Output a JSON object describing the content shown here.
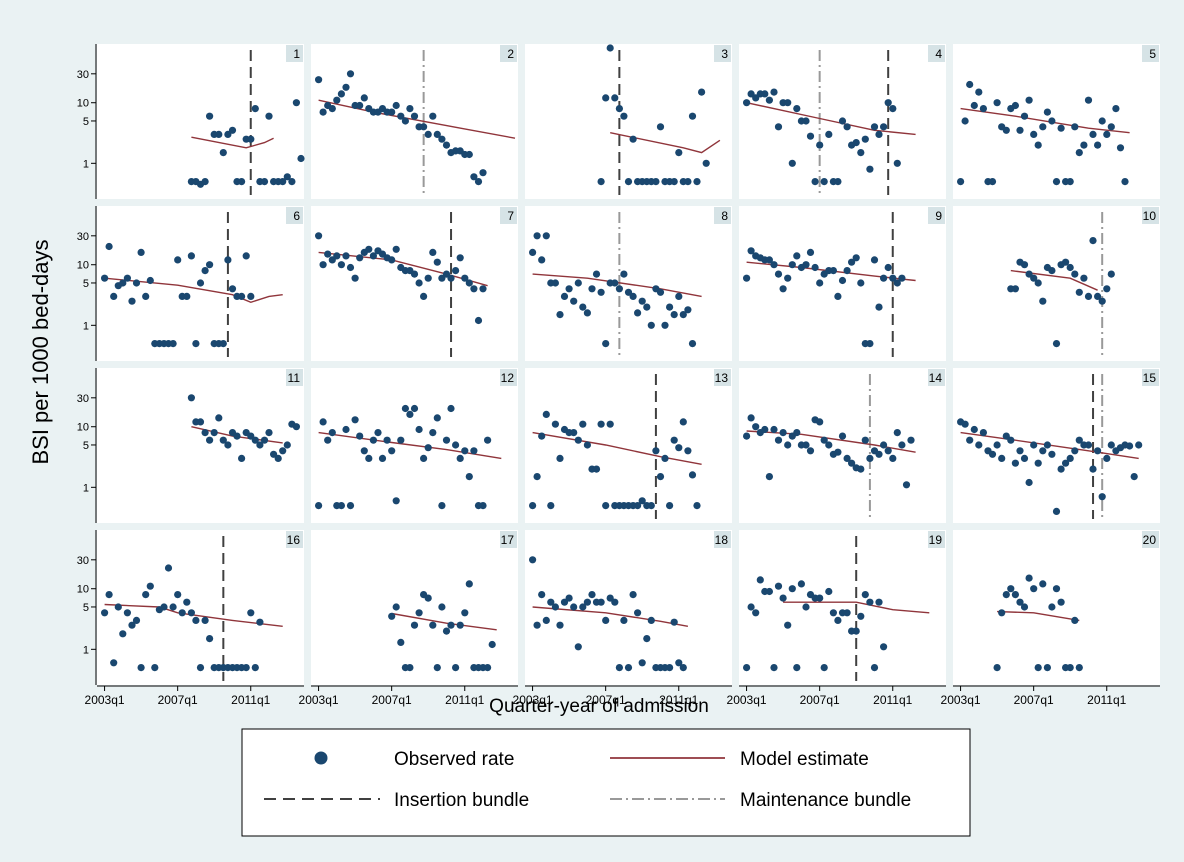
{
  "figure": {
    "y_title": "BSI per 1000 bed-days",
    "x_title": "Quarter-year of admission"
  },
  "legend": {
    "observed": "Observed rate",
    "model": "Model estimate",
    "insertion": "Insertion bundle",
    "maintenance": "Maintenance bundle"
  },
  "colors": {
    "background": "#eaf2f3",
    "panel": "#ffffff",
    "observed": "#1a476f",
    "model": "#90353b",
    "insertion": "#404040",
    "maintenance": "#999999",
    "panel_label_bg": "#d6e3e6"
  },
  "chart_data": {
    "type": "scatter",
    "scale": "log",
    "layout": "small-multiples 4 rows x 5 columns",
    "ylim": [
      0.3,
      80
    ],
    "y_ticks": [
      1,
      5,
      10,
      30
    ],
    "y_tick_labels": [
      "1",
      "5",
      "10",
      "30"
    ],
    "xlim": [
      2002.75,
      2013.75
    ],
    "x_ticks": [
      2003,
      2007,
      2011
    ],
    "x_tick_labels": [
      "2003q1",
      "2007q1",
      "2011q1"
    ],
    "zero_rate_plotted_at": 0.5,
    "panels": [
      {
        "id": "1",
        "x_start": 2007.75,
        "observed": [
          0.5,
          0.5,
          0.45,
          0.5,
          6,
          3,
          3,
          1.5,
          3,
          3.5,
          0.5,
          0.5,
          2.5,
          2.5,
          8,
          0.5,
          0.5,
          6,
          0.5,
          0.5,
          0.5,
          0.6,
          0.5,
          10,
          1.2
        ],
        "model": [
          [
            2007.75,
            2.7
          ],
          [
            2010.75,
            1.8
          ],
          [
            2011.75,
            2.2
          ],
          [
            2012.25,
            2.6
          ]
        ],
        "insertion": 2011.0
      },
      {
        "id": "2",
        "x_start": 2003.0,
        "observed": [
          24,
          7,
          9,
          8,
          11,
          14,
          18,
          30,
          9,
          9,
          12,
          8,
          7,
          7,
          8,
          7,
          7,
          9,
          6,
          5,
          8,
          6,
          4,
          4,
          3,
          6,
          3,
          2.5,
          2,
          1.5,
          1.6,
          1.6,
          1.4,
          1.4,
          0.6,
          0.5,
          0.7
        ],
        "model": [
          [
            2003.0,
            11
          ],
          [
            2006.0,
            7
          ],
          [
            2010.0,
            4.2
          ],
          [
            2013.75,
            2.6
          ]
        ],
        "maintenance": 2008.75
      },
      {
        "id": "3",
        "x_start": 2006.75,
        "observed": [
          0.5,
          12,
          80,
          12,
          8,
          6,
          0.5,
          2.5,
          0.5,
          0.5,
          0.5,
          0.5,
          0.5,
          4,
          0.5,
          0.5,
          0.5,
          1.5,
          0.5,
          0.5,
          6,
          0.5,
          15,
          1
        ],
        "model": [
          [
            2007.25,
            3.2
          ],
          [
            2011.25,
            1.8
          ],
          [
            2012.25,
            1.5
          ],
          [
            2013.25,
            2.4
          ]
        ],
        "insertion": 2007.75
      },
      {
        "id": "4",
        "x_start": 2003.0,
        "observed": [
          10,
          14,
          12,
          14,
          14,
          11,
          15,
          4,
          10,
          10,
          1,
          8,
          5,
          5,
          2.8,
          0.5,
          2,
          0.5,
          3,
          0.5,
          0.5,
          5,
          4,
          2,
          2.2,
          1.5,
          2.5,
          0.8,
          4,
          3,
          4,
          10,
          8,
          1
        ],
        "model": [
          [
            2003.0,
            10
          ],
          [
            2007.0,
            5.5
          ],
          [
            2010.0,
            3.5
          ],
          [
            2012.25,
            3.0
          ]
        ],
        "insertion": 2010.75,
        "maintenance": 2007.0
      },
      {
        "id": "5",
        "x_start": 2003.0,
        "observed": [
          0.5,
          5,
          20,
          9,
          15,
          8,
          0.5,
          0.5,
          10,
          4,
          3.5,
          8,
          9,
          3.5,
          6,
          11,
          3,
          2,
          4,
          7,
          5,
          0.5,
          3.8,
          0.5,
          0.5,
          4,
          1.5,
          2,
          11,
          3,
          2,
          5,
          3,
          4,
          8,
          1.8,
          0.5
        ],
        "model": [
          [
            2003.0,
            8
          ],
          [
            2006.0,
            6
          ],
          [
            2010.0,
            3.8
          ],
          [
            2012.25,
            3.2
          ]
        ]
      },
      {
        "id": "6",
        "x_start": 2003.0,
        "observed": [
          6,
          20,
          3,
          4.5,
          5,
          6,
          2.5,
          5,
          16,
          3,
          5.5,
          0.5,
          0.5,
          0.5,
          0.5,
          0.5,
          12,
          3,
          3,
          14,
          0.5,
          5,
          8,
          10,
          0.5,
          0.5,
          0.5,
          12,
          4,
          3,
          3,
          14,
          3
        ],
        "model": [
          [
            2003.0,
            6
          ],
          [
            2007.0,
            4.6
          ],
          [
            2010.0,
            3.2
          ],
          [
            2011.0,
            2.4
          ],
          [
            2012.0,
            3.0
          ],
          [
            2012.75,
            3.2
          ]
        ],
        "insertion": 2009.75
      },
      {
        "id": "7",
        "x_start": 2003.0,
        "observed": [
          30,
          10,
          15,
          12,
          14,
          10,
          14,
          9,
          6,
          13,
          16,
          18,
          14,
          17,
          15,
          13,
          12,
          18,
          9,
          8,
          8,
          7,
          5,
          3,
          6,
          16,
          11,
          6,
          7,
          6,
          8,
          13,
          6,
          5,
          4,
          1.2,
          4
        ],
        "model": [
          [
            2003.0,
            16
          ],
          [
            2007.0,
            12
          ],
          [
            2010.0,
            7
          ],
          [
            2012.25,
            4.5
          ]
        ],
        "insertion": 2010.25
      },
      {
        "id": "8",
        "x_start": 2003.0,
        "observed": [
          16,
          30,
          12,
          30,
          5,
          5,
          1.5,
          3,
          4,
          2.5,
          5,
          2,
          1.6,
          4,
          7,
          3.5,
          0.5,
          5,
          5,
          4,
          7,
          3.5,
          3,
          1.6,
          2.5,
          2,
          1,
          4,
          3.5,
          1,
          2,
          1.5,
          3,
          1.5,
          1.8,
          0.5
        ],
        "model": [
          [
            2003.0,
            7
          ],
          [
            2006.0,
            6
          ],
          [
            2010.0,
            4
          ],
          [
            2012.25,
            3.0
          ]
        ],
        "maintenance": 2007.75
      },
      {
        "id": "9",
        "x_start": 2003.0,
        "observed": [
          6,
          17,
          14,
          13,
          12,
          12,
          10,
          7,
          4,
          6,
          10,
          14,
          9,
          10,
          16,
          9,
          5,
          7,
          8,
          8,
          3,
          5.5,
          8,
          11,
          13,
          5,
          0.5,
          0.5,
          12,
          2,
          6,
          9,
          6,
          5,
          6
        ],
        "model": [
          [
            2003.0,
            11
          ],
          [
            2006.0,
            9
          ],
          [
            2010.0,
            6.5
          ],
          [
            2012.25,
            5.5
          ]
        ],
        "insertion": 2011.0
      },
      {
        "id": "10",
        "x_start": 2005.75,
        "observed": [
          4,
          4,
          11,
          10,
          7,
          6,
          5,
          2.5,
          9,
          8,
          0.5,
          10,
          11,
          9,
          7,
          3.5,
          6,
          3,
          25,
          3,
          2.5,
          4,
          7
        ],
        "model": [
          [
            2005.75,
            8
          ],
          [
            2009.0,
            6
          ],
          [
            2010.5,
            3.8
          ]
        ],
        "maintenance": 2010.75
      },
      {
        "id": "11",
        "x_start": 2007.75,
        "observed": [
          30,
          12,
          12,
          8,
          6,
          8,
          14,
          6,
          5,
          8,
          7,
          3,
          8,
          7,
          6,
          5,
          6,
          8,
          3.5,
          3,
          4,
          5,
          11,
          10
        ],
        "model": [
          [
            2007.75,
            10
          ],
          [
            2010.0,
            7
          ],
          [
            2012.75,
            5.4
          ]
        ]
      },
      {
        "id": "12",
        "x_start": 2003.0,
        "observed": [
          0.5,
          12,
          6,
          8,
          0.5,
          0.5,
          9,
          0.5,
          13,
          7,
          4,
          3,
          6,
          8,
          3,
          6,
          4,
          0.6,
          6,
          20,
          16,
          20,
          9,
          3,
          4.5,
          8,
          14,
          0.5,
          6,
          20,
          5,
          3,
          4,
          1.5,
          4,
          0.5,
          0.5,
          6
        ],
        "model": [
          [
            2003.0,
            8
          ],
          [
            2007.0,
            5.5
          ],
          [
            2010.0,
            4.2
          ],
          [
            2013.0,
            3.0
          ]
        ]
      },
      {
        "id": "13",
        "x_start": 2003.0,
        "observed": [
          0.5,
          1.5,
          7,
          16,
          0.5,
          11,
          3,
          9,
          8,
          8,
          6,
          11,
          5,
          2,
          2,
          11,
          0.5,
          11,
          0.5,
          0.5,
          0.5,
          0.5,
          0.5,
          0.5,
          0.6,
          0.5,
          0.5,
          4,
          1.5,
          3,
          0.5,
          6,
          4.5,
          12,
          4,
          1.6,
          0.5
        ],
        "model": [
          [
            2003.0,
            8
          ],
          [
            2007.0,
            5
          ],
          [
            2010.0,
            3.2
          ],
          [
            2012.25,
            2.4
          ]
        ],
        "insertion": 2009.75
      },
      {
        "id": "14",
        "x_start": 2003.0,
        "observed": [
          7,
          14,
          10,
          8,
          9,
          1.5,
          9,
          6,
          8,
          5,
          7,
          8,
          5,
          5,
          4,
          13,
          12,
          6,
          5,
          3.5,
          3.8,
          7,
          3,
          2.5,
          2.1,
          2,
          6,
          3,
          4,
          3.5,
          5,
          4,
          3,
          8,
          5,
          1.1,
          6
        ],
        "model": [
          [
            2003.0,
            8.5
          ],
          [
            2006.0,
            7.5
          ],
          [
            2010.0,
            5
          ],
          [
            2012.25,
            3.8
          ]
        ],
        "maintenance": 2009.75
      },
      {
        "id": "15",
        "x_start": 2003.0,
        "observed": [
          12,
          11,
          6,
          9,
          5,
          8,
          4,
          3.5,
          5,
          3,
          7,
          6,
          2.5,
          4,
          3,
          1.2,
          5,
          2.5,
          4,
          5,
          3.5,
          0.4,
          2,
          2.5,
          3,
          4,
          6,
          5,
          5,
          2,
          4,
          0.7,
          3,
          5,
          4,
          4.5,
          5,
          4.8,
          1.5,
          5
        ],
        "model": [
          [
            2003.0,
            8
          ],
          [
            2006.0,
            6
          ],
          [
            2010.0,
            4
          ],
          [
            2012.75,
            3.0
          ]
        ],
        "insertion": 2010.25,
        "maintenance": 2010.75
      },
      {
        "id": "16",
        "x_start": 2003.0,
        "observed": [
          4,
          8,
          0.6,
          5,
          1.8,
          4,
          2.5,
          3,
          0.5,
          8,
          11,
          0.5,
          4.5,
          5,
          22,
          5,
          8,
          4,
          6,
          4,
          3,
          0.5,
          3,
          1.5,
          0.5,
          0.5,
          0.5,
          0.5,
          0.5,
          0.5,
          0.5,
          0.5,
          4,
          0.5,
          2.8
        ],
        "model": [
          [
            2003.0,
            5.5
          ],
          [
            2006.0,
            5
          ],
          [
            2007.0,
            4
          ],
          [
            2010.0,
            3
          ],
          [
            2012.75,
            2.4
          ]
        ],
        "insertion": 2009.5
      },
      {
        "id": "17",
        "x_start": 2007.0,
        "observed": [
          3.5,
          5,
          1.3,
          0.5,
          0.5,
          2.5,
          4,
          8,
          7,
          2.5,
          0.5,
          5,
          2,
          2.5,
          0.5,
          2.5,
          4,
          12,
          0.5,
          0.5,
          0.5,
          0.5,
          1.2
        ],
        "model": [
          [
            2007.0,
            3.9
          ],
          [
            2010.0,
            2.7
          ],
          [
            2012.75,
            2.1
          ]
        ]
      },
      {
        "id": "18",
        "x_start": 2003.0,
        "observed": [
          30,
          2.5,
          8,
          3,
          6,
          5,
          2.5,
          6,
          7,
          5,
          1.1,
          5,
          6,
          8,
          6,
          6,
          3,
          7,
          6,
          0.5,
          3,
          0.5,
          8,
          4,
          0.6,
          1.5,
          3,
          0.5,
          0.5,
          0.5,
          0.5,
          2.8,
          0.6,
          0.5
        ],
        "model": [
          [
            2003.0,
            5
          ],
          [
            2007.0,
            4
          ],
          [
            2010.0,
            2.9
          ],
          [
            2011.5,
            2.4
          ]
        ]
      },
      {
        "id": "19",
        "x_start": 2003.0,
        "observed": [
          0.5,
          5,
          4,
          14,
          9,
          9,
          0.5,
          11,
          7,
          2.5,
          10,
          0.5,
          12,
          5,
          8,
          7,
          7,
          0.5,
          9,
          4,
          3,
          4,
          4,
          2,
          2,
          3.5,
          8,
          6,
          0.5,
          6,
          1.1
        ],
        "model": [
          [
            2005.0,
            6
          ],
          [
            2009.0,
            6
          ],
          [
            2011.0,
            4.5
          ],
          [
            2013.0,
            4
          ]
        ],
        "insertion": 2009.0
      },
      {
        "id": "20",
        "x_start": 2005.0,
        "observed": [
          0.5,
          4,
          8,
          10,
          8,
          6,
          5,
          15,
          10,
          0.5,
          12,
          0.5,
          5,
          10,
          6,
          0.5,
          0.5,
          3,
          0.5
        ],
        "model": [
          [
            2005.0,
            4.2
          ],
          [
            2007.0,
            4
          ],
          [
            2009.5,
            3
          ]
        ]
      }
    ]
  }
}
